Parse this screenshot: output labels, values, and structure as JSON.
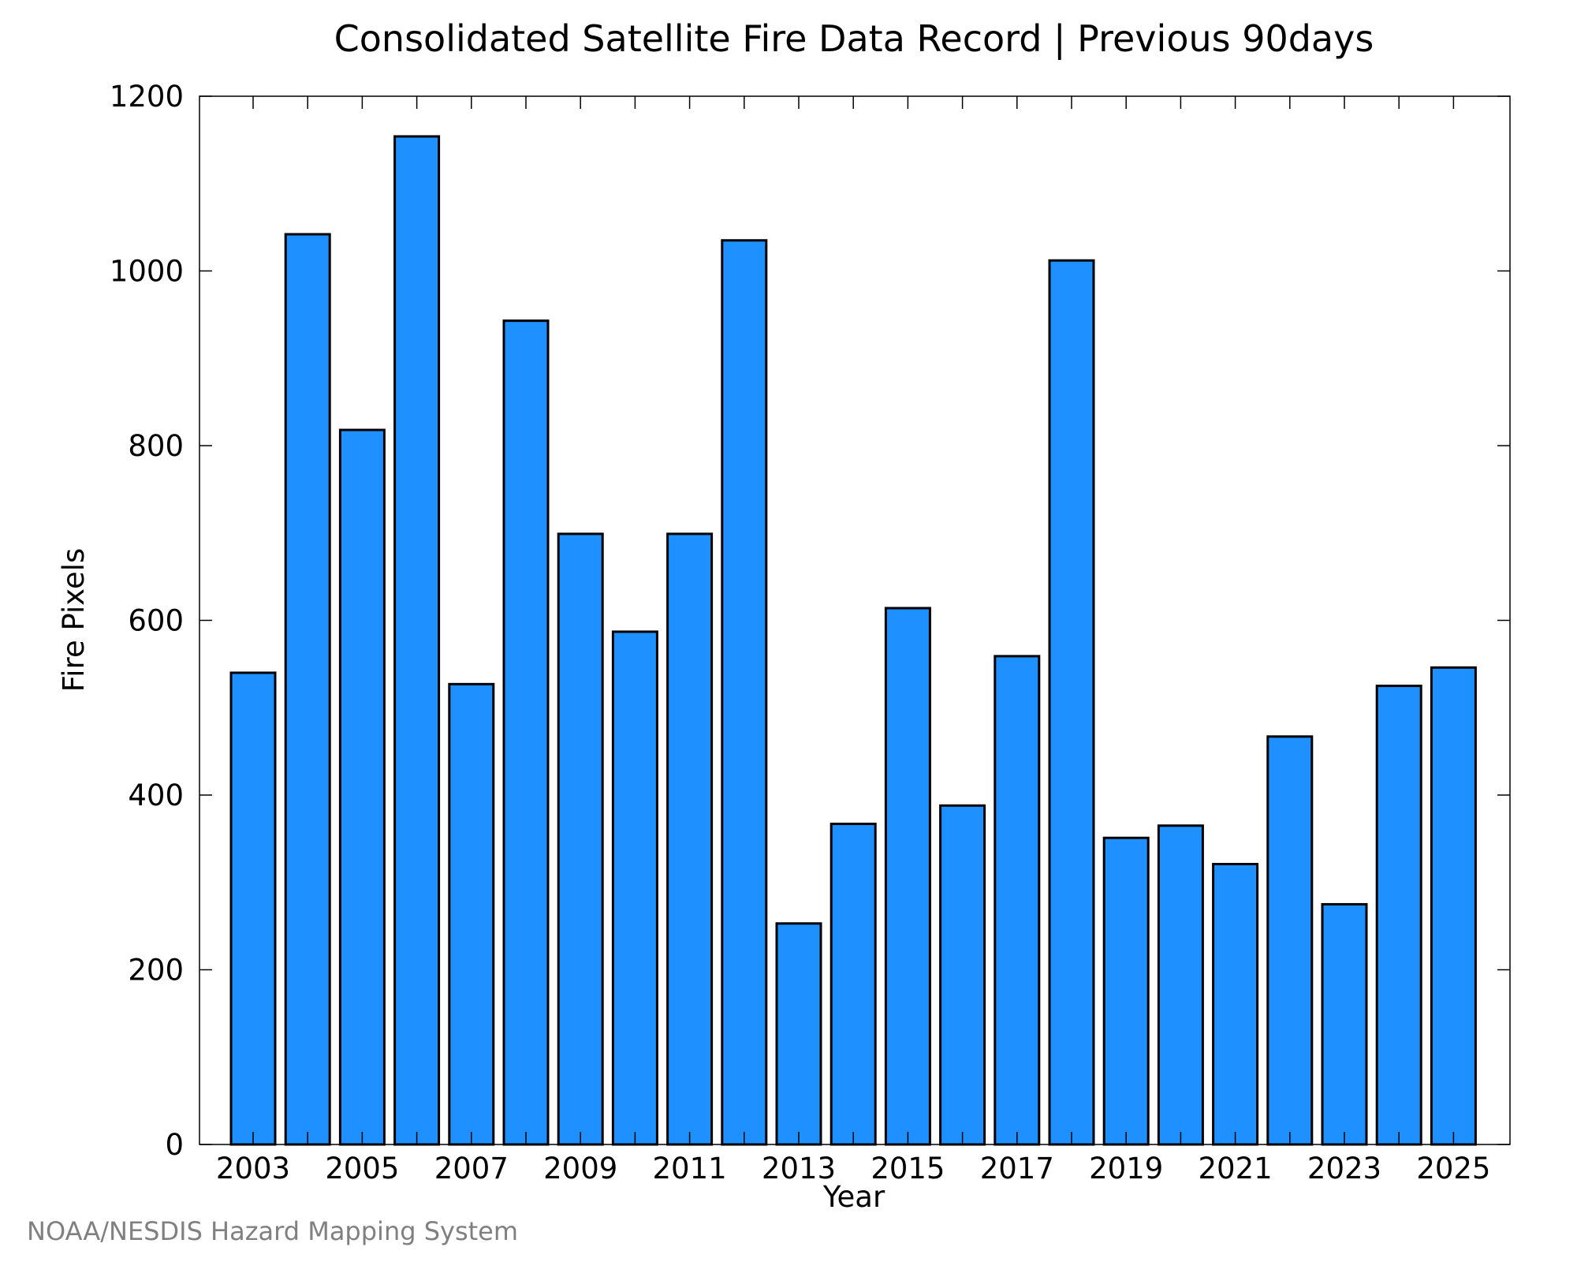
{
  "chart_data": {
    "type": "bar",
    "title": "Consolidated Satellite Fire Data Record | Previous 90days",
    "xlabel": "Year",
    "ylabel": "Fire Pixels",
    "categories": [
      "2003",
      "2004",
      "2005",
      "2006",
      "2007",
      "2008",
      "2009",
      "2010",
      "2011",
      "2012",
      "2013",
      "2014",
      "2015",
      "2016",
      "2017",
      "2018",
      "2019",
      "2020",
      "2021",
      "2022",
      "2023",
      "2024",
      "2025"
    ],
    "values": [
      540,
      1042,
      818,
      1154,
      527,
      943,
      699,
      587,
      699,
      1035,
      253,
      367,
      614,
      388,
      559,
      1012,
      351,
      365,
      321,
      467,
      275,
      525,
      546
    ],
    "ylim": [
      0,
      1200
    ],
    "yticks": [
      "0",
      "200",
      "400",
      "600",
      "800",
      "1000",
      "1200"
    ],
    "xticks": [
      "2003",
      "2005",
      "2007",
      "2009",
      "2011",
      "2013",
      "2015",
      "2017",
      "2019",
      "2021",
      "2023",
      "2025"
    ],
    "bar_color": "#1e90ff",
    "grid": false,
    "legend": "none"
  },
  "credit": "NOAA/NESDIS Hazard Mapping System"
}
